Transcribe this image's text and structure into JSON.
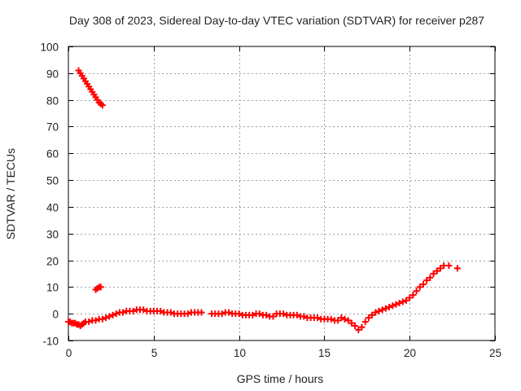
{
  "chart_data": {
    "type": "scatter",
    "title": "Day 308 of 2023, Sidereal Day-to-day VTEC variation (SDTVAR) for receiver p287",
    "xlabel": "GPS time / hours",
    "ylabel": "SDTVAR / TECUs",
    "xlim": [
      0,
      25
    ],
    "ylim": [
      -10,
      100
    ],
    "xticks": [
      0,
      5,
      10,
      15,
      20,
      25
    ],
    "yticks": [
      -10,
      0,
      10,
      20,
      30,
      40,
      50,
      60,
      70,
      80,
      90,
      100
    ],
    "grid": true,
    "marker": "plus",
    "series": [
      {
        "name": "SDTVAR",
        "color": "#ff0000",
        "x": [
          0.6,
          0.7,
          0.8,
          0.9,
          1.0,
          1.1,
          1.2,
          1.3,
          1.4,
          1.5,
          1.6,
          1.7,
          1.8,
          1.9,
          2.0,
          1.6,
          1.7,
          1.8,
          1.9,
          0.0,
          0.1,
          0.2,
          0.3,
          0.4,
          0.5,
          0.6,
          0.7,
          0.8,
          0.9,
          1.0,
          1.2,
          1.4,
          1.6,
          1.8,
          2.0,
          2.2,
          2.4,
          2.6,
          2.8,
          3.0,
          3.2,
          3.4,
          3.6,
          3.8,
          4.0,
          4.2,
          4.4,
          4.6,
          4.8,
          5.0,
          5.2,
          5.4,
          5.6,
          5.8,
          6.0,
          6.2,
          6.4,
          6.6,
          6.8,
          7.0,
          7.2,
          7.4,
          7.6,
          7.8,
          8.4,
          8.6,
          8.8,
          9.0,
          9.2,
          9.4,
          9.6,
          9.8,
          10.0,
          10.2,
          10.4,
          10.6,
          10.8,
          11.0,
          11.2,
          11.4,
          11.6,
          11.8,
          12.0,
          12.2,
          12.4,
          12.6,
          12.8,
          13.0,
          13.2,
          13.4,
          13.6,
          13.8,
          14.0,
          14.2,
          14.4,
          14.6,
          14.8,
          15.0,
          15.2,
          15.4,
          15.6,
          15.8,
          16.0,
          16.2,
          16.4,
          16.6,
          16.8,
          17.0,
          17.2,
          17.4,
          17.6,
          17.8,
          18.0,
          18.2,
          18.4,
          18.6,
          18.8,
          19.0,
          19.2,
          19.4,
          19.6,
          19.8,
          20.0,
          20.2,
          20.4,
          20.6,
          20.8,
          21.0,
          21.2,
          21.4,
          21.6,
          21.8,
          22.0,
          22.3,
          22.8
        ],
        "y": [
          91,
          90,
          89,
          88,
          87,
          86,
          85,
          84,
          83,
          82,
          81,
          80,
          79,
          78.5,
          78,
          9,
          9.5,
          10,
          10,
          -3,
          -3,
          -3.5,
          -3.5,
          -3.5,
          -4,
          -4,
          -4.5,
          -4,
          -3.5,
          -3,
          -3,
          -2.5,
          -2.5,
          -2,
          -2,
          -1.5,
          -1,
          -0.5,
          0,
          0.5,
          0.5,
          1,
          1,
          1,
          1.5,
          1.5,
          1.5,
          1,
          1,
          1,
          1,
          1,
          0.5,
          0.5,
          0.5,
          0,
          0,
          0,
          0,
          0,
          0.5,
          0.5,
          0.5,
          0.5,
          0,
          0,
          0,
          0,
          0.5,
          0.5,
          0,
          0,
          0,
          -0.5,
          -0.5,
          -0.5,
          -0.5,
          0,
          0,
          -0.5,
          -0.5,
          -1,
          -1,
          0,
          0,
          0,
          -0.5,
          -0.5,
          -0.5,
          -0.5,
          -1,
          -1,
          -1.5,
          -1.5,
          -1.5,
          -1.5,
          -2,
          -2,
          -2,
          -2,
          -2.5,
          -2.5,
          -1.5,
          -2,
          -2.5,
          -3.5,
          -4.5,
          -6,
          -5,
          -3,
          -1.5,
          -0.5,
          0.5,
          1,
          1.5,
          2,
          2.5,
          3,
          3.5,
          4,
          4.5,
          5,
          6,
          7,
          8.5,
          10,
          11,
          12.5,
          13.5,
          15,
          16,
          17,
          18,
          18,
          17
        ]
      }
    ]
  }
}
